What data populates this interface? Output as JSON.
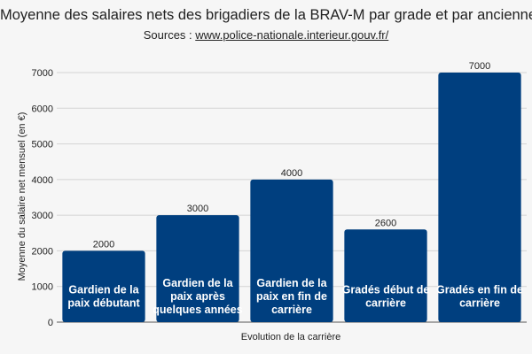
{
  "chart_data": {
    "type": "bar",
    "title": "Moyenne des salaires nets des brigadiers de la BRAV-M par grade et par ancienneté",
    "subtitle_prefix": "Sources : ",
    "subtitle_link": "www.police-nationale.interieur.gouv.fr/",
    "xlabel": "Evolution de la carrière",
    "ylabel": "Moyenne du salaire net mensuel (en €)",
    "ylim": [
      0,
      7000
    ],
    "yticks": [
      0,
      1000,
      2000,
      3000,
      4000,
      5000,
      6000,
      7000
    ],
    "grid": true,
    "legend": "none",
    "bar_color": "#003f7f",
    "categories": [
      [
        "Gardien de la",
        "paix débutant"
      ],
      [
        "Gardien de la",
        "paix après",
        "quelques années"
      ],
      [
        "Gardien de la",
        "paix en fin de",
        "carrière"
      ],
      [
        "Gradés début de",
        "carrière"
      ],
      [
        "Gradés en fin de",
        "carrière"
      ]
    ],
    "values": [
      2000,
      3000,
      4000,
      2600,
      7000
    ]
  }
}
